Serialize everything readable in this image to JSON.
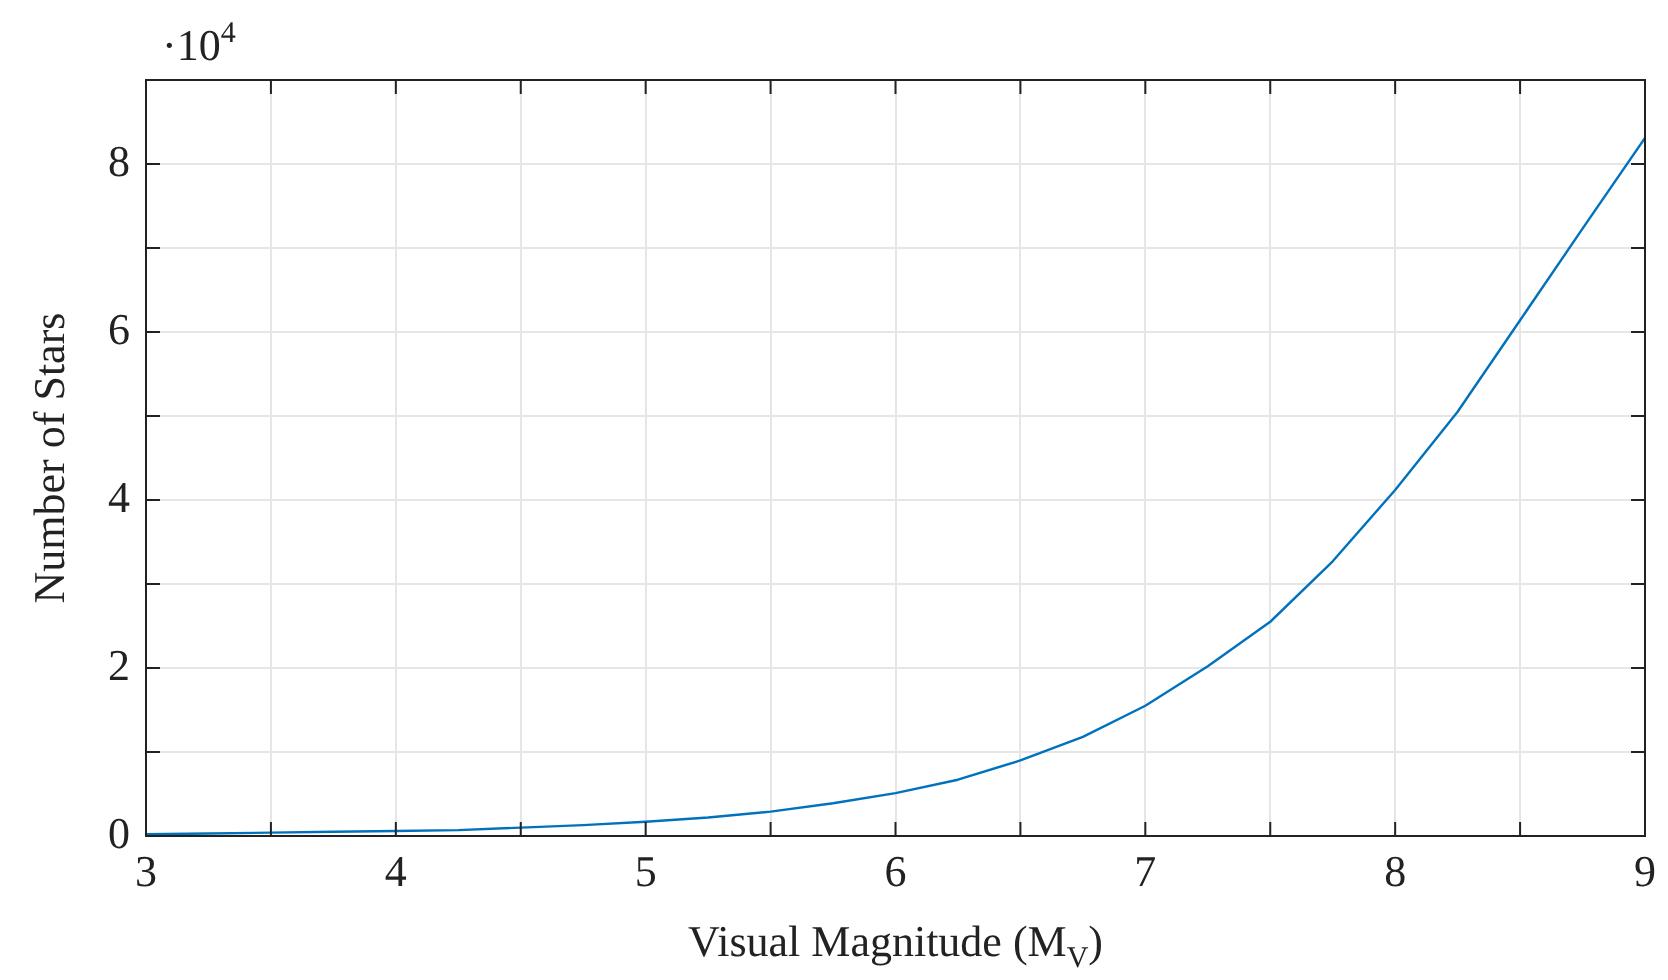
{
  "chart_data": {
    "type": "line",
    "xlabel": "Visual Magnitude (M$_{V}$)",
    "ylabel": "Number of Stars",
    "annotations": [
      "·10$^{4}$"
    ],
    "x": [
      3,
      3.25,
      3.5,
      3.75,
      4,
      4.25,
      4.5,
      4.75,
      5,
      5.25,
      5.5,
      5.75,
      6,
      6.25,
      6.5,
      6.75,
      7,
      7.25,
      7.5,
      7.75,
      8,
      8.25,
      8.5,
      8.75,
      9
    ],
    "series": [
      {
        "color": "#0072bd",
        "values": [
          0.02,
          0.03,
          0.04,
          0.05,
          0.06,
          0.07,
          0.1,
          0.13,
          0.17,
          0.22,
          0.29,
          0.39,
          0.51,
          0.67,
          0.9,
          1.18,
          1.55,
          2.02,
          2.55,
          3.27,
          4.12,
          5.05,
          6.14,
          7.23,
          8.31
        ]
      }
    ],
    "xlim": [
      3,
      9
    ],
    "ylim": [
      0,
      9
    ],
    "xticks": [
      3,
      {
        "value": 3.5,
        "label": null
      },
      4,
      {
        "value": 4.5,
        "label": null
      },
      5,
      {
        "value": 5.5,
        "label": null
      },
      6,
      {
        "value": 6.5,
        "label": null
      },
      7,
      {
        "value": 7.5,
        "label": null
      },
      8,
      {
        "value": 8.5,
        "label": null
      },
      9
    ],
    "yticks": [
      0,
      {
        "value": 1,
        "label": null
      },
      2,
      {
        "value": 3,
        "label": null
      },
      4,
      {
        "value": 5,
        "label": null
      },
      6,
      {
        "value": 7,
        "label": null
      },
      8
    ],
    "grid": true,
    "legend": false,
    "marker": "none",
    "line_style": "solid"
  }
}
